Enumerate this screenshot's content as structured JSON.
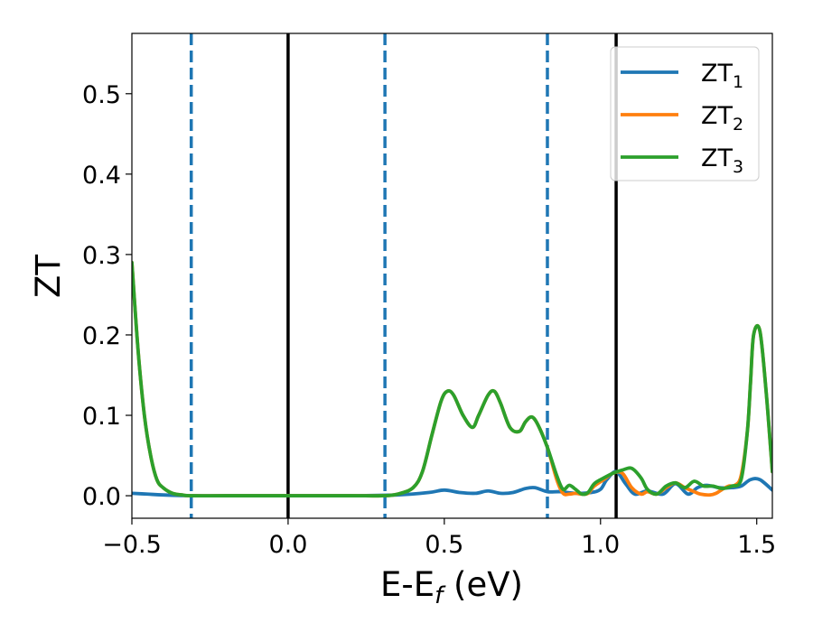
{
  "chart_data": {
    "type": "line",
    "xlabel": {
      "main": "E-E",
      "sub": "f",
      "unit": " (eV)"
    },
    "ylabel": "ZT",
    "xlim": [
      -0.5,
      1.55
    ],
    "ylim": [
      -0.028,
      0.575
    ],
    "x_ticks": [
      "−0.5",
      "0.0",
      "0.5",
      "1.0",
      "1.5"
    ],
    "x_tick_values": [
      -0.5,
      0.0,
      0.5,
      1.0,
      1.5
    ],
    "y_ticks": [
      "0.0",
      "0.1",
      "0.2",
      "0.3",
      "0.4",
      "0.5"
    ],
    "y_tick_values": [
      0.0,
      0.1,
      0.2,
      0.3,
      0.4,
      0.5
    ],
    "grid": false,
    "legend_position": "top-right",
    "vlines_solid": [
      0.0,
      1.05
    ],
    "vlines_dashed": [
      -0.31,
      0.31,
      0.83
    ],
    "series": [
      {
        "name": {
          "main": "ZT",
          "sub": "1"
        },
        "color": "#1f77b4",
        "x": [
          -0.5,
          -0.45,
          -0.4,
          -0.3,
          -0.2,
          0.0,
          0.2,
          0.35,
          0.45,
          0.5,
          0.55,
          0.6,
          0.64,
          0.68,
          0.72,
          0.76,
          0.79,
          0.83,
          0.87,
          0.92,
          0.97,
          1.0,
          1.02,
          1.05,
          1.08,
          1.11,
          1.15,
          1.2,
          1.24,
          1.28,
          1.31,
          1.34,
          1.38,
          1.42,
          1.45,
          1.48,
          1.51,
          1.55
        ],
        "y": [
          0.003,
          0.002,
          0.001,
          0.0,
          0.0,
          0.0,
          0.0,
          0.001,
          0.004,
          0.007,
          0.004,
          0.003,
          0.006,
          0.003,
          0.004,
          0.009,
          0.01,
          0.005,
          0.005,
          0.003,
          0.004,
          0.008,
          0.02,
          0.03,
          0.015,
          0.002,
          0.006,
          0.002,
          0.015,
          0.002,
          0.01,
          0.013,
          0.01,
          0.01,
          0.012,
          0.02,
          0.02,
          0.007
        ]
      },
      {
        "name": {
          "main": "ZT",
          "sub": "2"
        },
        "color": "#ff7f0e",
        "x": [
          -0.5,
          -0.48,
          -0.46,
          -0.44,
          -0.42,
          -0.4,
          -0.37,
          -0.34,
          -0.31,
          -0.2,
          0.0,
          0.2,
          0.3,
          0.35,
          0.4,
          0.43,
          0.46,
          0.49,
          0.51,
          0.53,
          0.56,
          0.59,
          0.61,
          0.64,
          0.66,
          0.68,
          0.71,
          0.74,
          0.76,
          0.78,
          0.8,
          0.83,
          0.86,
          0.88,
          0.9,
          0.92,
          0.94,
          0.96,
          0.98,
          1.01,
          1.04,
          1.07,
          1.1,
          1.13,
          1.15,
          1.18,
          1.21,
          1.24,
          1.27,
          1.3,
          1.32,
          1.35,
          1.37,
          1.39,
          1.41,
          1.43,
          1.45,
          1.47,
          1.48,
          1.49,
          1.51,
          1.53,
          1.55
        ],
        "y": [
          0.29,
          0.18,
          0.1,
          0.05,
          0.02,
          0.01,
          0.003,
          0.001,
          0.0,
          0.0,
          0.0,
          0.0,
          0.0,
          0.002,
          0.01,
          0.03,
          0.075,
          0.118,
          0.13,
          0.125,
          0.1,
          0.085,
          0.1,
          0.125,
          0.13,
          0.115,
          0.085,
          0.08,
          0.092,
          0.098,
          0.088,
          0.06,
          0.02,
          0.003,
          0.002,
          0.003,
          0.002,
          0.003,
          0.012,
          0.02,
          0.028,
          0.028,
          0.01,
          0.002,
          0.005,
          0.002,
          0.01,
          0.016,
          0.01,
          0.005,
          0.002,
          0.001,
          0.003,
          0.008,
          0.012,
          0.013,
          0.025,
          0.08,
          0.14,
          0.2,
          0.205,
          0.13,
          0.03
        ]
      },
      {
        "name": {
          "main": "ZT",
          "sub": "3"
        },
        "color": "#2ca02c",
        "x": [
          -0.5,
          -0.48,
          -0.46,
          -0.44,
          -0.42,
          -0.4,
          -0.37,
          -0.34,
          -0.31,
          -0.2,
          0.0,
          0.2,
          0.3,
          0.35,
          0.4,
          0.43,
          0.46,
          0.49,
          0.51,
          0.53,
          0.56,
          0.59,
          0.61,
          0.64,
          0.66,
          0.68,
          0.71,
          0.74,
          0.76,
          0.78,
          0.8,
          0.83,
          0.86,
          0.88,
          0.9,
          0.92,
          0.94,
          0.96,
          0.98,
          1.01,
          1.04,
          1.07,
          1.1,
          1.13,
          1.15,
          1.18,
          1.21,
          1.24,
          1.27,
          1.3,
          1.33,
          1.36,
          1.39,
          1.42,
          1.45,
          1.47,
          1.48,
          1.49,
          1.51,
          1.53,
          1.55
        ],
        "y": [
          0.29,
          0.18,
          0.1,
          0.05,
          0.02,
          0.01,
          0.003,
          0.001,
          0.0,
          0.0,
          0.0,
          0.0,
          0.0,
          0.002,
          0.01,
          0.03,
          0.075,
          0.118,
          0.13,
          0.125,
          0.1,
          0.085,
          0.1,
          0.125,
          0.13,
          0.115,
          0.085,
          0.08,
          0.092,
          0.098,
          0.088,
          0.06,
          0.025,
          0.008,
          0.013,
          0.008,
          0.002,
          0.004,
          0.015,
          0.022,
          0.028,
          0.032,
          0.034,
          0.022,
          0.008,
          0.002,
          0.012,
          0.016,
          0.01,
          0.018,
          0.012,
          0.012,
          0.009,
          0.012,
          0.02,
          0.08,
          0.14,
          0.2,
          0.205,
          0.13,
          0.03
        ]
      }
    ]
  }
}
